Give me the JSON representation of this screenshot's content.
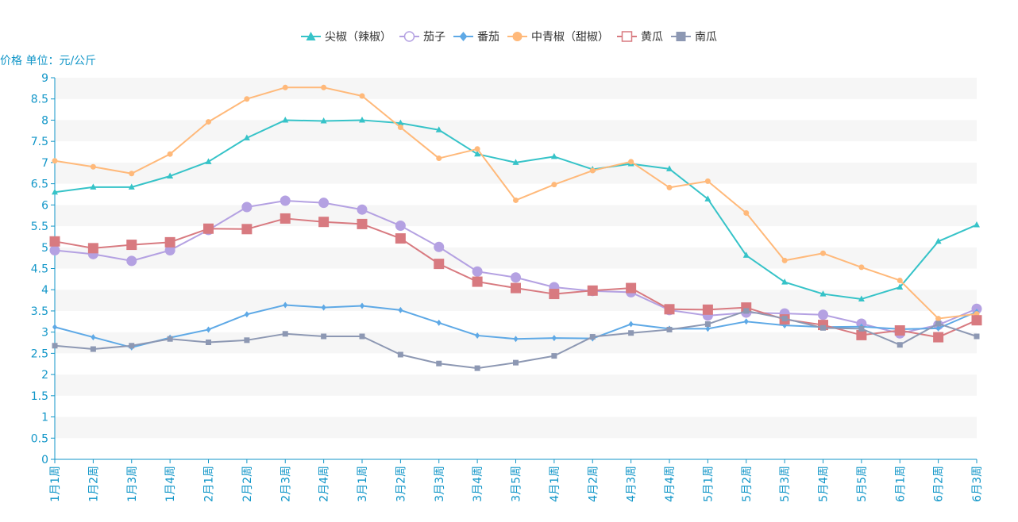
{
  "chart_data": {
    "type": "line",
    "ylabel": "价格 单位：元/公斤",
    "ylim": [
      0,
      9
    ],
    "yticks": [
      0,
      0.5,
      1,
      1.5,
      2,
      2.5,
      3,
      3.5,
      4,
      4.5,
      5,
      5.5,
      6,
      6.5,
      7,
      7.5,
      8,
      8.5,
      9
    ],
    "grid": "alternating horizontal bands",
    "legend_position": "top-center",
    "categories": [
      "1月1周",
      "1月2周",
      "1月3周",
      "1月4周",
      "2月1周",
      "2月2周",
      "2月3周",
      "2月4周",
      "3月1周",
      "3月2周",
      "3月3周",
      "3月4周",
      "3月5周",
      "4月1周",
      "4月2周",
      "4月3周",
      "4月4周",
      "5月1周",
      "5月2周",
      "5月3周",
      "5月4周",
      "5月5周",
      "6月1周",
      "6月2周",
      "6月3周"
    ],
    "series": [
      {
        "name": "尖椒（辣椒）",
        "color": "#36c3c8",
        "symbol": "triangle",
        "values": [
          6.3,
          6.42,
          6.42,
          6.68,
          7.02,
          7.58,
          8.0,
          7.98,
          8.0,
          7.93,
          7.77,
          7.2,
          7.0,
          7.14,
          6.84,
          6.97,
          6.85,
          6.14,
          4.81,
          4.18,
          3.9,
          3.78,
          4.06,
          5.14,
          5.53
        ]
      },
      {
        "name": "茄子",
        "color": "#b4a1e2",
        "symbol": "emptyCircle",
        "values": [
          4.93,
          4.84,
          4.68,
          4.93,
          5.41,
          5.95,
          6.1,
          6.05,
          5.89,
          5.51,
          5.01,
          4.43,
          4.29,
          4.06,
          3.97,
          3.94,
          3.52,
          3.39,
          3.46,
          3.44,
          3.41,
          3.2,
          2.97,
          3.17,
          3.55
        ]
      },
      {
        "name": "番茄",
        "color": "#5ea9e6",
        "symbol": "diamond",
        "values": [
          3.12,
          2.88,
          2.64,
          2.87,
          3.06,
          3.42,
          3.64,
          3.58,
          3.62,
          3.52,
          3.22,
          2.92,
          2.84,
          2.86,
          2.85,
          3.19,
          3.08,
          3.08,
          3.25,
          3.16,
          3.12,
          3.13,
          3.07,
          3.09,
          3.48
        ]
      },
      {
        "name": "中青椒（甜椒）",
        "color": "#ffb97a",
        "symbol": "circle",
        "values": [
          7.04,
          6.9,
          6.74,
          7.2,
          7.96,
          8.5,
          8.77,
          8.77,
          8.57,
          7.83,
          7.1,
          7.32,
          6.11,
          6.48,
          6.81,
          7.02,
          6.41,
          6.56,
          5.81,
          4.69,
          4.86,
          4.53,
          4.22,
          3.32,
          3.43
        ]
      },
      {
        "name": "黄瓜",
        "color": "#d87a80",
        "symbol": "emptyRect",
        "values": [
          5.14,
          4.98,
          5.06,
          5.12,
          5.44,
          5.43,
          5.68,
          5.6,
          5.55,
          5.21,
          4.61,
          4.19,
          4.04,
          3.9,
          3.98,
          4.04,
          3.54,
          3.53,
          3.58,
          3.3,
          3.17,
          2.93,
          3.04,
          2.88,
          3.28
        ]
      },
      {
        "name": "南瓜",
        "color": "#8d98b3",
        "symbol": "rect",
        "values": [
          2.68,
          2.6,
          2.68,
          2.84,
          2.76,
          2.81,
          2.96,
          2.9,
          2.9,
          2.47,
          2.26,
          2.15,
          2.28,
          2.44,
          2.89,
          2.98,
          3.06,
          3.19,
          3.5,
          3.32,
          3.1,
          3.08,
          2.7,
          3.2,
          2.9
        ]
      }
    ]
  }
}
